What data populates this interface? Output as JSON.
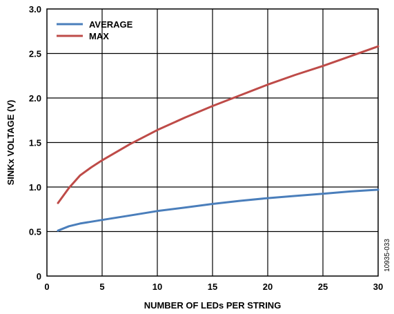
{
  "figure_code": "10935-033",
  "chart_data": {
    "type": "line",
    "title": "",
    "xlabel": "NUMBER OF LEDs PER STRING",
    "ylabel": "SINKx VOLTAGE (V)",
    "xlim": [
      0,
      30
    ],
    "ylim": [
      0,
      3.0
    ],
    "x_ticks": [
      "0",
      "5",
      "10",
      "15",
      "20",
      "25",
      "30"
    ],
    "y_ticks": [
      "0",
      "0.5",
      "1.0",
      "1.5",
      "2.0",
      "2.5",
      "3.0"
    ],
    "grid": true,
    "legend_position": "top-left",
    "series": [
      {
        "name": "AVERAGE",
        "color": "#4a7ebb",
        "x": [
          1,
          2,
          3,
          4,
          5,
          7.5,
          10,
          12.5,
          15,
          17.5,
          20,
          22.5,
          25,
          27.5,
          30
        ],
        "y": [
          0.51,
          0.56,
          0.59,
          0.61,
          0.63,
          0.68,
          0.73,
          0.77,
          0.81,
          0.845,
          0.875,
          0.9,
          0.925,
          0.95,
          0.97
        ]
      },
      {
        "name": "MAX",
        "color": "#be4b48",
        "x": [
          1,
          2,
          3,
          4,
          5,
          7.5,
          10,
          12.5,
          15,
          17.5,
          20,
          22.5,
          25,
          27.5,
          30
        ],
        "y": [
          0.82,
          0.99,
          1.13,
          1.22,
          1.3,
          1.48,
          1.64,
          1.78,
          1.91,
          2.03,
          2.15,
          2.26,
          2.36,
          2.47,
          2.58
        ]
      }
    ]
  }
}
